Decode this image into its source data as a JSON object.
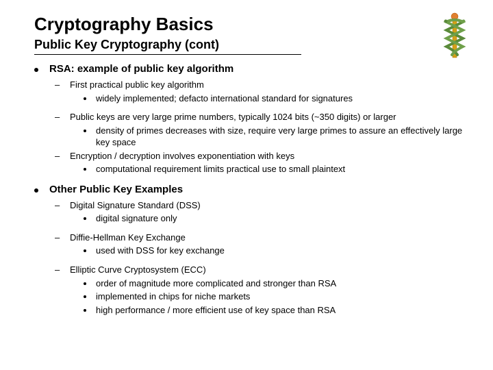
{
  "title": "Cryptography Basics",
  "subtitle": "Public Key Cryptography (cont)",
  "sections": [
    {
      "heading": "RSA: example of public key algorithm",
      "items": [
        {
          "text": "First practical public key algorithm",
          "sub": [
            "widely implemented; defacto international standard for signatures"
          ],
          "gapAfter": true
        },
        {
          "text": "Public keys are very large prime numbers, typically 1024 bits (~350 digits) or larger",
          "sub": [
            "density of primes decreases with size, require very large primes to assure an effectively large key space"
          ]
        },
        {
          "text": "Encryption / decryption involves exponentiation with keys",
          "sub": [
            "computational requirement limits practical use to small plaintext"
          ]
        }
      ]
    },
    {
      "heading": "Other Public Key Examples",
      "items": [
        {
          "text": "Digital Signature Standard (DSS)",
          "sub": [
            "digital signature only"
          ],
          "gapAfter": true
        },
        {
          "text": "Diffie-Hellman Key Exchange",
          "sub": [
            "used with DSS for key exchange"
          ],
          "gapAfter": true
        },
        {
          "text": "Elliptic Curve Cryptosystem (ECC)",
          "sub": [
            "order of magnitude more complicated and stronger than RSA",
            "implemented in chips for niche markets",
            "high performance / more efficient use of key space than RSA"
          ]
        }
      ]
    }
  ],
  "colors": {
    "text": "#000000",
    "background": "#ffffff",
    "rule": "#000000",
    "snakeBody": "#5a8a3a",
    "staffGold": "#d4a017",
    "staffOrange": "#e08030"
  }
}
